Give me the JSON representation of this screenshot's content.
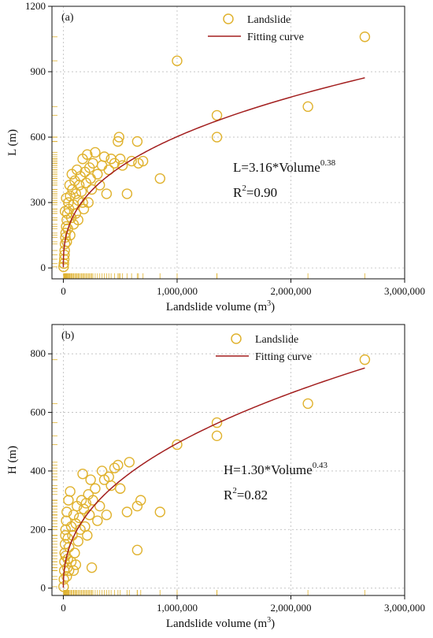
{
  "colors": {
    "marker": "#e0b22e",
    "curve": "#a31f1f",
    "grid": "#bdbdbd",
    "axis": "#111111"
  },
  "chart_data": [
    {
      "type": "scatter",
      "panel_label": "(a)",
      "xlabel": "Landslide volume (m³)",
      "xlabel_main": "Landslide volume (m",
      "xlabel_sup": "3",
      "xlabel_end": ")",
      "ylabel": "L (m)",
      "xlim": [
        -100000,
        3000000
      ],
      "ylim": [
        -50,
        1200
      ],
      "x_ticks": [
        0,
        1000000,
        2000000,
        3000000
      ],
      "x_tick_labels": [
        "0",
        "1,000,000",
        "2,000,000",
        "3,000,000"
      ],
      "y_ticks": [
        0,
        300,
        600,
        900,
        1200
      ],
      "y_tick_labels": [
        "0",
        "300",
        "600",
        "900",
        "1200"
      ],
      "grid": true,
      "legend": {
        "position": "top-right",
        "entries": [
          "Landslide",
          "Fitting curve"
        ]
      },
      "equation": {
        "main": "L=3.16*Volume",
        "exp": "0.38",
        "r2_prefix": "R",
        "r2_sup": "2",
        "r2_value": "=0.90"
      },
      "fit": {
        "a": 3.16,
        "b": 0.38
      },
      "series": [
        {
          "name": "Landslide",
          "points": [
            [
              2000,
              5
            ],
            [
              5000,
              20
            ],
            [
              8000,
              40
            ],
            [
              10000,
              60
            ],
            [
              12000,
              80
            ],
            [
              15000,
              110
            ],
            [
              18000,
              140
            ],
            [
              20000,
              160
            ],
            [
              25000,
              190
            ],
            [
              30000,
              220
            ],
            [
              35000,
              250
            ],
            [
              40000,
              180
            ],
            [
              45000,
              300
            ],
            [
              50000,
              270
            ],
            [
              60000,
              330
            ],
            [
              70000,
              230
            ],
            [
              80000,
              360
            ],
            [
              90000,
              290
            ],
            [
              100000,
              400
            ],
            [
              110000,
              340
            ],
            [
              120000,
              450
            ],
            [
              130000,
              310
            ],
            [
              140000,
              380
            ],
            [
              150000,
              420
            ],
            [
              160000,
              350
            ],
            [
              170000,
              500
            ],
            [
              180000,
              270
            ],
            [
              190000,
              440
            ],
            [
              200000,
              390
            ],
            [
              210000,
              520
            ],
            [
              220000,
              300
            ],
            [
              230000,
              460
            ],
            [
              240000,
              410
            ],
            [
              250000,
              360
            ],
            [
              260000,
              480
            ],
            [
              280000,
              530
            ],
            [
              300000,
              430
            ],
            [
              320000,
              380
            ],
            [
              340000,
              470
            ],
            [
              360000,
              510
            ],
            [
              380000,
              340
            ],
            [
              400000,
              450
            ],
            [
              420000,
              500
            ],
            [
              450000,
              480
            ],
            [
              480000,
              580
            ],
            [
              490000,
              600
            ],
            [
              500000,
              500
            ],
            [
              520000,
              470
            ],
            [
              560000,
              340
            ],
            [
              600000,
              490
            ],
            [
              650000,
              580
            ],
            [
              660000,
              480
            ],
            [
              700000,
              490
            ],
            [
              850000,
              410
            ],
            [
              1000000,
              950
            ],
            [
              1350000,
              700
            ],
            [
              1350000,
              600
            ],
            [
              2150000,
              740
            ],
            [
              2650000,
              1060
            ],
            [
              30000,
              120
            ],
            [
              60000,
              150
            ],
            [
              90000,
              200
            ],
            [
              15000,
              260
            ],
            [
              25000,
              320
            ],
            [
              55000,
              380
            ],
            [
              75000,
              430
            ],
            [
              110000,
              250
            ],
            [
              130000,
              220
            ],
            [
              170000,
              300
            ]
          ]
        }
      ]
    },
    {
      "type": "scatter",
      "panel_label": "(b)",
      "xlabel": "Landslide volume (m³)",
      "xlabel_main": "Landslide volume (m",
      "xlabel_sup": "3",
      "xlabel_end": ")",
      "ylabel": "H (m)",
      "xlim": [
        -100000,
        3000000
      ],
      "ylim": [
        -25,
        900
      ],
      "x_ticks": [
        0,
        1000000,
        2000000,
        3000000
      ],
      "x_tick_labels": [
        "0",
        "1,000,000",
        "2,000,000",
        "3,000,000"
      ],
      "y_ticks": [
        0,
        200,
        400,
        600,
        800
      ],
      "y_tick_labels": [
        "0",
        "200",
        "400",
        "600",
        "800"
      ],
      "grid": true,
      "legend": {
        "position": "top-right",
        "entries": [
          "Landslide",
          "Fitting curve"
        ]
      },
      "equation": {
        "main": "H=1.30*Volume",
        "exp": "0.43",
        "r2_prefix": "R",
        "r2_sup": "2",
        "r2_value": "=0.82"
      },
      "fit": {
        "a": 1.3,
        "b": 0.43
      },
      "series": [
        {
          "name": "Landslide",
          "points": [
            [
              2000,
              5
            ],
            [
              5000,
              30
            ],
            [
              8000,
              60
            ],
            [
              10000,
              90
            ],
            [
              12000,
              120
            ],
            [
              15000,
              150
            ],
            [
              18000,
              180
            ],
            [
              20000,
              200
            ],
            [
              25000,
              230
            ],
            [
              30000,
              260
            ],
            [
              35000,
              70
            ],
            [
              40000,
              100
            ],
            [
              45000,
              300
            ],
            [
              50000,
              140
            ],
            [
              60000,
              330
            ],
            [
              70000,
              210
            ],
            [
              80000,
              180
            ],
            [
              90000,
              250
            ],
            [
              100000,
              120
            ],
            [
              110000,
              220
            ],
            [
              120000,
              280
            ],
            [
              130000,
              160
            ],
            [
              140000,
              240
            ],
            [
              150000,
              200
            ],
            [
              160000,
              300
            ],
            [
              170000,
              390
            ],
            [
              180000,
              270
            ],
            [
              190000,
              210
            ],
            [
              200000,
              290
            ],
            [
              210000,
              180
            ],
            [
              220000,
              320
            ],
            [
              230000,
              250
            ],
            [
              240000,
              370
            ],
            [
              250000,
              70
            ],
            [
              260000,
              300
            ],
            [
              280000,
              340
            ],
            [
              300000,
              230
            ],
            [
              320000,
              280
            ],
            [
              340000,
              400
            ],
            [
              360000,
              370
            ],
            [
              380000,
              250
            ],
            [
              400000,
              380
            ],
            [
              420000,
              350
            ],
            [
              450000,
              410
            ],
            [
              480000,
              420
            ],
            [
              500000,
              340
            ],
            [
              560000,
              260
            ],
            [
              580000,
              430
            ],
            [
              650000,
              130
            ],
            [
              650000,
              280
            ],
            [
              680000,
              300
            ],
            [
              850000,
              260
            ],
            [
              1000000,
              490
            ],
            [
              1350000,
              565
            ],
            [
              1350000,
              520
            ],
            [
              2150000,
              630
            ],
            [
              2650000,
              780
            ],
            [
              30000,
              40
            ],
            [
              50000,
              60
            ],
            [
              70000,
              90
            ],
            [
              20000,
              110
            ],
            [
              40000,
              170
            ],
            [
              90000,
              60
            ],
            [
              110000,
              80
            ]
          ]
        }
      ]
    }
  ]
}
